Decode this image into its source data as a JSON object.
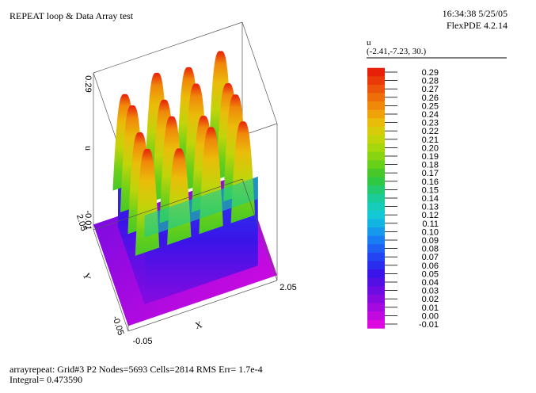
{
  "header": {
    "title": "REPEAT loop & Data Array test",
    "timestamp": "16:34:38 5/25/05",
    "version": "FlexPDE 4.2.14"
  },
  "legend": {
    "variable": "u",
    "view_point": "(-2.41,-7.23, 30.)",
    "levels": [
      "0.29",
      "0.28",
      "0.27",
      "0.26",
      "0.25",
      "0.24",
      "0.23",
      "0.22",
      "0.21",
      "0.20",
      "0.19",
      "0.18",
      "0.17",
      "0.16",
      "0.15",
      "0.14",
      "0.13",
      "0.12",
      "0.11",
      "0.10",
      "0.09",
      "0.08",
      "0.07",
      "0.06",
      "0.05",
      "0.04",
      "0.03",
      "0.02",
      "0.01",
      "0.00",
      "-0.01"
    ],
    "colors": [
      "#e8200a",
      "#ea3a0a",
      "#ec540a",
      "#ee6e0a",
      "#f0880a",
      "#f0a20a",
      "#eabc0a",
      "#d8cc0a",
      "#c2d40a",
      "#a6d60c",
      "#88d410",
      "#68d018",
      "#48c828",
      "#2ec842",
      "#24ca6e",
      "#1ccc98",
      "#18ccbc",
      "#14c8d6",
      "#12b4e2",
      "#1698ec",
      "#1a7cf2",
      "#1e60f4",
      "#2244f2",
      "#2a2cee",
      "#3a14e8",
      "#5210e4",
      "#6c0ce2",
      "#880ae0",
      "#a40ae0",
      "#c00ae0",
      "#dc0ae0"
    ]
  },
  "footer": {
    "line1": "arrayrepeat:  Grid#3  P2  Nodes=5693 Cells=2814 RMS Err= 1.7e-4",
    "line2": "Integral=  0.473590"
  },
  "chart_data": {
    "type": "surface",
    "title": "REPEAT loop & Data Array test",
    "variable": "u",
    "x_axis": {
      "label": "X",
      "ticks": [
        "-0.05",
        "2.05"
      ]
    },
    "y_axis": {
      "label": "Y",
      "ticks": [
        "-0.05",
        "2.05"
      ]
    },
    "z_axis": {
      "label": "u",
      "ticks": [
        "-0.01",
        "0.29"
      ]
    },
    "zlim": [
      -0.01,
      0.29
    ],
    "peak_grid": {
      "x": [
        0.3,
        0.75,
        1.2,
        1.65
      ],
      "y": [
        0.3,
        0.75,
        1.2,
        1.65
      ],
      "values": [
        [
          0.29,
          0.27,
          0.29,
          0.28
        ],
        [
          0.28,
          0.29,
          0.27,
          0.29
        ],
        [
          0.29,
          0.28,
          0.29,
          0.27
        ],
        [
          0.27,
          0.29,
          0.28,
          0.29
        ]
      ]
    },
    "plateau_value": 0.17,
    "base_value": 0.0
  }
}
